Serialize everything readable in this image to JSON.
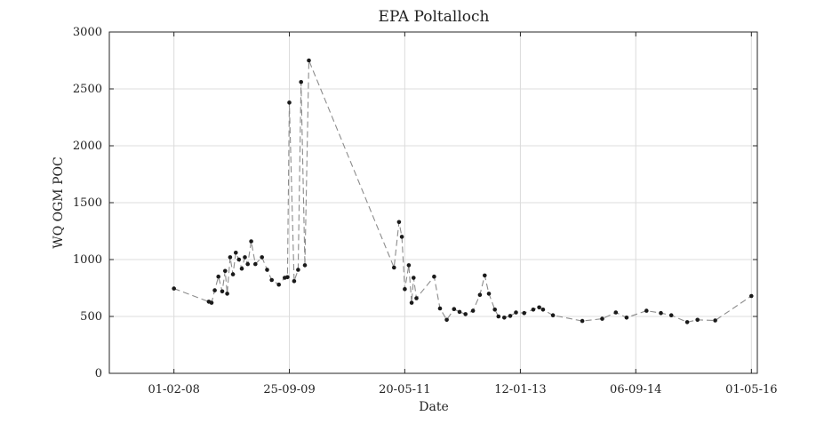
{
  "chart_data": {
    "type": "line",
    "title": "EPA Poltalloch",
    "xlabel": "Date",
    "ylabel": "WQ OGM POC",
    "ylim": [
      0,
      3000
    ],
    "xlim": [
      "2007-03-01",
      "2016-06-01"
    ],
    "yticks": [
      0,
      500,
      1000,
      1500,
      2000,
      2500,
      3000
    ],
    "xticks": [
      {
        "date": "2008-02-01",
        "label": "01-02-08"
      },
      {
        "date": "2009-09-25",
        "label": "25-09-09"
      },
      {
        "date": "2011-05-20",
        "label": "20-05-11"
      },
      {
        "date": "2013-01-12",
        "label": "12-01-13"
      },
      {
        "date": "2014-09-06",
        "label": "06-09-14"
      },
      {
        "date": "2016-05-01",
        "label": "01-05-16"
      }
    ],
    "grid": true,
    "line_color": "#8c8c8c",
    "marker_color": "#1a1a1a",
    "series": [
      {
        "x": [
          "2008-02-01",
          "2008-08-01",
          "2008-08-15",
          "2008-09-01",
          "2008-09-20",
          "2008-10-10",
          "2008-10-25",
          "2008-11-05",
          "2008-11-20",
          "2008-12-05",
          "2008-12-20",
          "2009-01-05",
          "2009-01-20",
          "2009-02-05",
          "2009-02-20",
          "2009-03-10",
          "2009-04-01",
          "2009-05-05",
          "2009-06-01",
          "2009-06-25",
          "2009-08-01",
          "2009-09-01",
          "2009-09-15",
          "2009-09-25",
          "2009-10-20",
          "2009-11-10",
          "2009-11-25",
          "2009-12-15",
          "2010-01-05",
          "2011-03-25",
          "2011-04-20",
          "2011-05-05",
          "2011-05-20",
          "2011-06-10",
          "2011-06-25",
          "2011-07-05",
          "2011-07-20",
          "2011-10-20",
          "2011-11-20",
          "2011-12-25",
          "2012-02-01",
          "2012-03-01",
          "2012-04-01",
          "2012-05-10",
          "2012-06-15",
          "2012-07-10",
          "2012-08-01",
          "2012-09-01",
          "2012-09-20",
          "2012-10-20",
          "2012-11-20",
          "2012-12-20",
          "2013-02-01",
          "2013-03-20",
          "2013-04-20",
          "2013-05-10",
          "2013-07-01",
          "2013-12-01",
          "2014-03-15",
          "2014-05-25",
          "2014-07-20",
          "2014-11-01",
          "2015-01-15",
          "2015-03-10",
          "2015-06-01",
          "2015-07-25",
          "2015-10-25",
          "2016-05-01"
        ],
        "y": [
          745,
          630,
          620,
          730,
          850,
          720,
          900,
          700,
          1020,
          870,
          1060,
          1000,
          920,
          1020,
          960,
          1160,
          960,
          1020,
          910,
          820,
          780,
          840,
          845,
          2380,
          810,
          910,
          2560,
          950,
          2750,
          930,
          1330,
          1200,
          740,
          950,
          620,
          840,
          660,
          850,
          570,
          470,
          565,
          540,
          520,
          550,
          690,
          860,
          700,
          560,
          500,
          490,
          505,
          535,
          530,
          560,
          580,
          560,
          510,
          460,
          480,
          535,
          490,
          550,
          530,
          510,
          450,
          470,
          465,
          680
        ]
      }
    ]
  }
}
